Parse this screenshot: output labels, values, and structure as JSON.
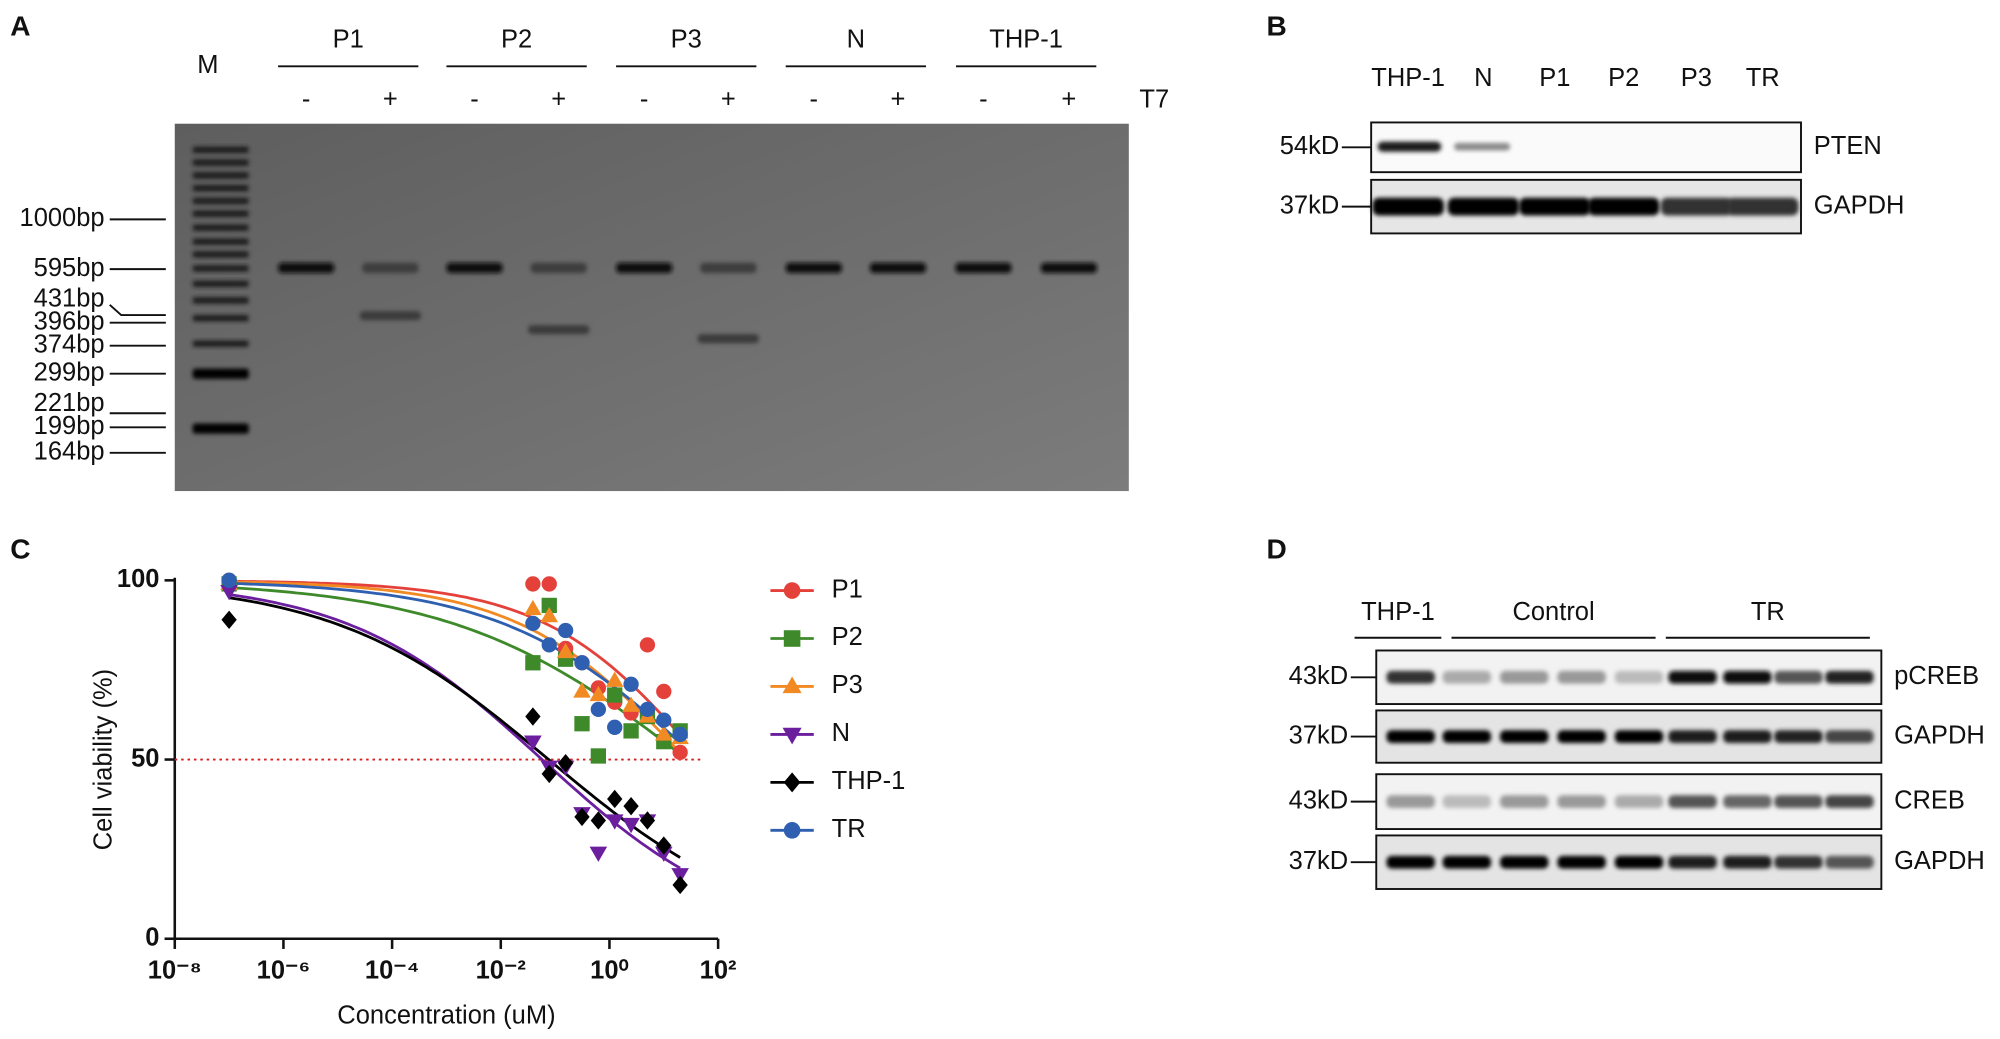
{
  "panel_labels": [
    "A",
    "B",
    "C",
    "D"
  ],
  "gel": {
    "ladder_label": "M",
    "groups": [
      "P1",
      "P2",
      "P3",
      "N",
      "THP-1"
    ],
    "lane_signs": [
      "-",
      "+"
    ],
    "enzyme": "T7",
    "size_markers": [
      "1000bp",
      "595bp",
      "431bp",
      "396bp",
      "374bp",
      "299bp",
      "221bp",
      "199bp",
      "164bp"
    ]
  },
  "western_b": {
    "lanes": [
      "THP-1",
      "N",
      "P1",
      "P2",
      "P3",
      "TR"
    ],
    "markers": [
      "54kD",
      "37kD"
    ],
    "proteins": [
      "PTEN",
      "GAPDH"
    ]
  },
  "chart_data": {
    "type": "scatter",
    "xlabel": "Concentration (uM)",
    "ylabel": "Cell viability (%)",
    "xscale": "log",
    "xlim": [
      1e-08,
      100
    ],
    "xticks": [
      {
        "value": 1e-08,
        "label": "10⁻⁸"
      },
      {
        "value": 1e-06,
        "label": "10⁻⁶"
      },
      {
        "value": 0.0001,
        "label": "10⁻⁴"
      },
      {
        "value": 0.01,
        "label": "10⁻²"
      },
      {
        "value": 1,
        "label": "10⁰"
      },
      {
        "value": 100,
        "label": "10²"
      }
    ],
    "ylim": [
      0,
      100
    ],
    "yticks": [
      0,
      50,
      100
    ],
    "hline": 50,
    "hline_color": "#d42020",
    "fit": "sigmoid",
    "x": [
      1e-07,
      0.039,
      0.078,
      0.156,
      0.3125,
      0.625,
      1.25,
      2.5,
      5,
      10,
      20
    ],
    "series": [
      {
        "name": "P1",
        "color": "#e5413b",
        "marker": "circle",
        "values": [
          100,
          99,
          99,
          81,
          77,
          70,
          66,
          63,
          82,
          69,
          52
        ]
      },
      {
        "name": "P2",
        "color": "#3e8a2b",
        "marker": "square",
        "values": [
          99,
          77,
          93,
          78,
          60,
          51,
          68,
          58,
          62,
          55,
          58
        ]
      },
      {
        "name": "P3",
        "color": "#f28a23",
        "marker": "triangle-up",
        "values": [
          99,
          92,
          90,
          80,
          69,
          68,
          72,
          65,
          62,
          57,
          56
        ]
      },
      {
        "name": "N",
        "color": "#6b1f9e",
        "marker": "triangle-down",
        "values": [
          97,
          55,
          48,
          48,
          35,
          24,
          33,
          32,
          33,
          24,
          18
        ]
      },
      {
        "name": "THP-1",
        "color": "#000000",
        "marker": "diamond",
        "values": [
          89,
          62,
          46,
          49,
          34,
          33,
          39,
          37,
          33,
          26,
          15
        ]
      },
      {
        "name": "TR",
        "color": "#2e5fb0",
        "marker": "circle",
        "values": [
          100,
          88,
          82,
          86,
          77,
          64,
          59,
          71,
          64,
          61,
          57
        ]
      }
    ]
  },
  "western_d": {
    "groups": [
      "THP-1",
      "Control",
      "TR"
    ],
    "markers": [
      "43kD",
      "37kD",
      "43kD",
      "37kD"
    ],
    "proteins": [
      "pCREB",
      "GAPDH",
      "CREB",
      "GAPDH"
    ]
  }
}
